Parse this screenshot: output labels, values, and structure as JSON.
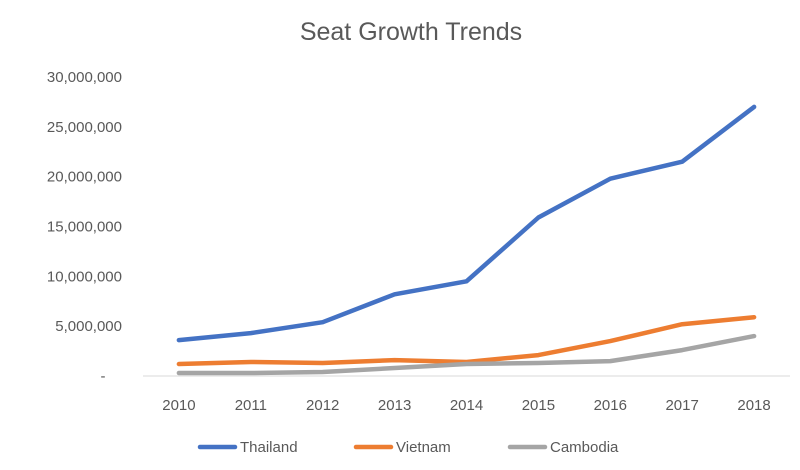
{
  "chart_data": {
    "type": "line",
    "title": "Seat Growth Trends",
    "xlabel": "",
    "ylabel": "",
    "categories": [
      "2010",
      "2011",
      "2012",
      "2013",
      "2014",
      "2015",
      "2016",
      "2017",
      "2018"
    ],
    "ylim": [
      0,
      30000000
    ],
    "y_ticks": [
      0,
      5000000,
      10000000,
      15000000,
      20000000,
      25000000,
      30000000
    ],
    "y_tick_labels": [
      "-",
      "5,000,000",
      "10,000,000",
      "15,000,000",
      "20,000,000",
      "25,000,000",
      "30,000,000"
    ],
    "grid": false,
    "legend_position": "bottom",
    "series": [
      {
        "name": "Thailand",
        "color": "#4472C4",
        "values": [
          3600000,
          4300000,
          5400000,
          8200000,
          9500000,
          15900000,
          19800000,
          21500000,
          27000000
        ]
      },
      {
        "name": "Vietnam",
        "color": "#ED7D31",
        "values": [
          1200000,
          1400000,
          1300000,
          1600000,
          1400000,
          2100000,
          3500000,
          5200000,
          5900000
        ]
      },
      {
        "name": "Cambodia",
        "color": "#A5A5A5",
        "values": [
          300000,
          300000,
          400000,
          800000,
          1200000,
          1300000,
          1500000,
          2600000,
          4000000
        ]
      }
    ]
  }
}
